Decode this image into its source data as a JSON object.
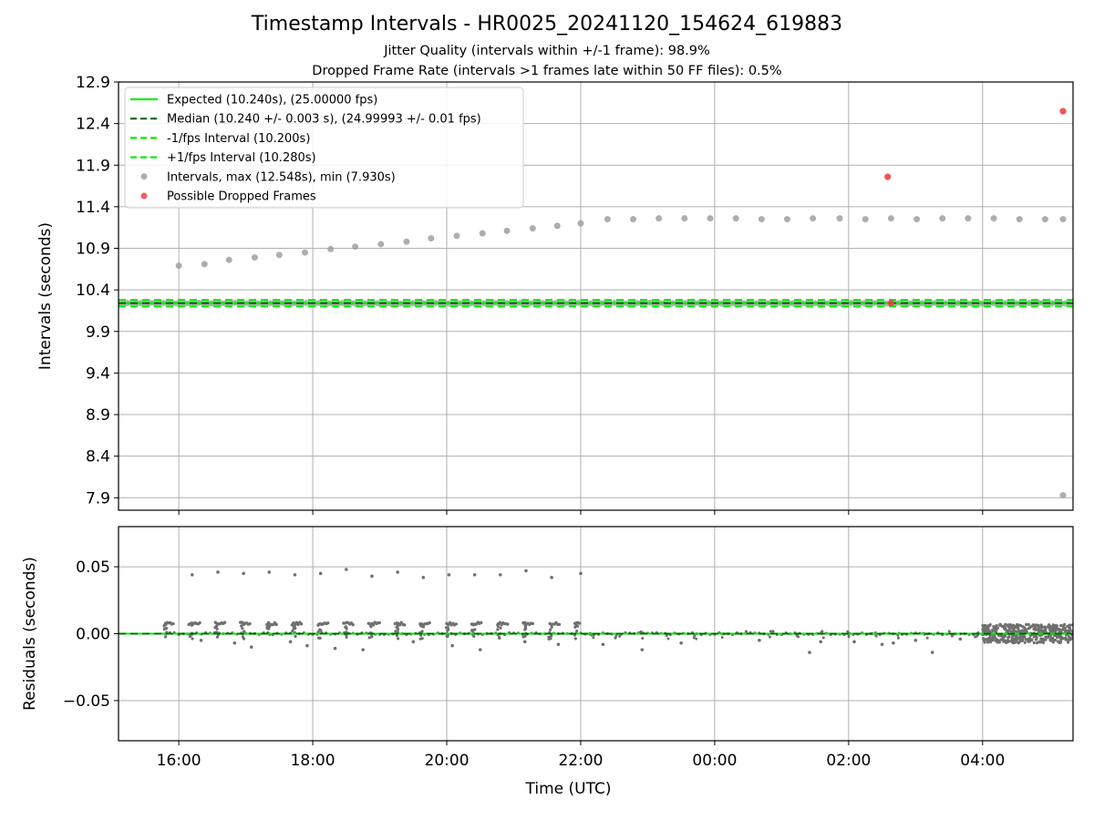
{
  "title": "Timestamp Intervals - HR0025_20241120_154624_619883",
  "subtitle_1": "Jitter Quality (intervals within +/-1 frame): 98.9%",
  "subtitle_2": "Dropped Frame Rate (intervals >1 frames late within 50 FF files): 0.5%",
  "colors": {
    "expected": "#00ee00",
    "median": "#006400",
    "bounds": "#00ee00",
    "intervals": "#a0a0a0",
    "dropped": "#f04040",
    "residuals": "#707070",
    "grid": "#b0b0b0"
  },
  "chart_data": [
    {
      "type": "scatter",
      "panel": "top",
      "ylabel": "Intervals (seconds)",
      "ylim": [
        7.75,
        12.9
      ],
      "xlim": [
        "15:06",
        "05:21"
      ],
      "yticks": [
        "12.9",
        "12.4",
        "11.9",
        "11.4",
        "10.9",
        "10.4",
        "9.9",
        "9.4",
        "8.9",
        "8.4",
        "7.9"
      ],
      "grid": true,
      "legend_position": "top-left",
      "legend": [
        "Expected (10.240s), (25.00000 fps)",
        "Median (10.240 +/- 0.003 s), (24.99993 +/- 0.01 fps)",
        "-1/fps Interval (10.200s)",
        "+1/fps Interval (10.280s)",
        "Intervals, max (12.548s), min (7.930s)",
        "Possible Dropped Frames"
      ],
      "reference_lines": {
        "expected": 10.24,
        "median": 10.24,
        "minus_one_frame": 10.2,
        "plus_one_frame": 10.28
      },
      "dense_intervals": {
        "from": "15:06",
        "to": "05:21",
        "value": 10.24,
        "jitter": 0.01
      },
      "cluster_intervals": [
        [
          "16:00",
          10.69
        ],
        [
          "16:23",
          10.71
        ],
        [
          "16:45",
          10.76
        ],
        [
          "17:08",
          10.79
        ],
        [
          "17:30",
          10.82
        ],
        [
          "17:53",
          10.85
        ],
        [
          "18:16",
          10.89
        ],
        [
          "18:38",
          10.92
        ],
        [
          "19:01",
          10.95
        ],
        [
          "19:24",
          10.98
        ],
        [
          "19:46",
          11.02
        ],
        [
          "20:09",
          11.05
        ],
        [
          "20:32",
          11.08
        ],
        [
          "20:54",
          11.11
        ],
        [
          "21:17",
          11.14
        ],
        [
          "21:39",
          11.17
        ],
        [
          "22:00",
          11.2
        ],
        [
          "22:24",
          11.25
        ],
        [
          "22:47",
          11.25
        ],
        [
          "23:10",
          11.26
        ],
        [
          "23:33",
          11.26
        ],
        [
          "23:56",
          11.26
        ],
        [
          "00:19",
          11.26
        ],
        [
          "00:42",
          11.25
        ],
        [
          "01:05",
          11.25
        ],
        [
          "01:28",
          11.26
        ],
        [
          "01:52",
          11.26
        ],
        [
          "02:15",
          11.25
        ],
        [
          "02:38",
          11.26
        ],
        [
          "03:01",
          11.25
        ],
        [
          "03:24",
          11.26
        ],
        [
          "03:47",
          11.26
        ],
        [
          "04:10",
          11.26
        ],
        [
          "04:33",
          11.25
        ],
        [
          "04:56",
          11.25
        ],
        [
          "05:12",
          11.25
        ],
        [
          "05:12",
          7.93
        ]
      ],
      "dropped_frames": [
        [
          "02:35",
          11.76
        ],
        [
          "05:12",
          12.548
        ],
        [
          "02:38",
          10.24
        ]
      ]
    },
    {
      "type": "scatter",
      "panel": "bottom",
      "ylabel": "Residuals (seconds)",
      "xlabel": "Time (UTC)",
      "ylim": [
        -0.08,
        0.08
      ],
      "yticks": [
        "0.05",
        "0.00",
        "−0.05"
      ],
      "xticks": [
        "16:00",
        "18:00",
        "20:00",
        "22:00",
        "00:00",
        "02:00",
        "04:00"
      ],
      "grid": true,
      "zero_line": 0.0,
      "outliers_high": [
        [
          "16:12",
          0.044
        ],
        [
          "16:35",
          0.046
        ],
        [
          "16:58",
          0.045
        ],
        [
          "17:21",
          0.046
        ],
        [
          "17:44",
          0.044
        ],
        [
          "18:07",
          0.045
        ],
        [
          "18:30",
          0.048
        ],
        [
          "18:53",
          0.043
        ],
        [
          "19:16",
          0.046
        ],
        [
          "19:39",
          0.042
        ],
        [
          "20:02",
          0.044
        ],
        [
          "20:25",
          0.044
        ],
        [
          "20:48",
          0.044
        ],
        [
          "21:11",
          0.047
        ],
        [
          "21:34",
          0.042
        ],
        [
          "22:00",
          0.045
        ]
      ],
      "outliers_low": [
        [
          "16:20",
          -0.005
        ],
        [
          "16:50",
          -0.007
        ],
        [
          "17:05",
          -0.01
        ],
        [
          "17:40",
          -0.006
        ],
        [
          "17:55",
          -0.009
        ],
        [
          "18:20",
          -0.011
        ],
        [
          "18:45",
          -0.012
        ],
        [
          "19:30",
          -0.006
        ],
        [
          "20:05",
          -0.009
        ],
        [
          "20:30",
          -0.012
        ],
        [
          "21:10",
          -0.006
        ],
        [
          "21:40",
          -0.008
        ],
        [
          "22:20",
          -0.008
        ],
        [
          "22:55",
          -0.012
        ],
        [
          "23:30",
          -0.007
        ],
        [
          "00:40",
          -0.005
        ],
        [
          "01:25",
          -0.014
        ],
        [
          "01:35",
          -0.006
        ],
        [
          "02:05",
          -0.006
        ],
        [
          "02:30",
          -0.008
        ],
        [
          "02:40",
          -0.007
        ],
        [
          "03:00",
          -0.005
        ],
        [
          "03:15",
          -0.014
        ],
        [
          "03:40",
          -0.004
        ]
      ],
      "band_points": {
        "from": "15:48",
        "to": "22:00",
        "level": 0.0075,
        "spread": 0.002
      },
      "early_bursts": {
        "from": "15:48",
        "to": "22:00",
        "low": -0.004,
        "high": 0.008
      },
      "late_cloud": {
        "from": "04:00",
        "to": "05:21",
        "low": -0.007,
        "high": 0.007
      }
    }
  ]
}
